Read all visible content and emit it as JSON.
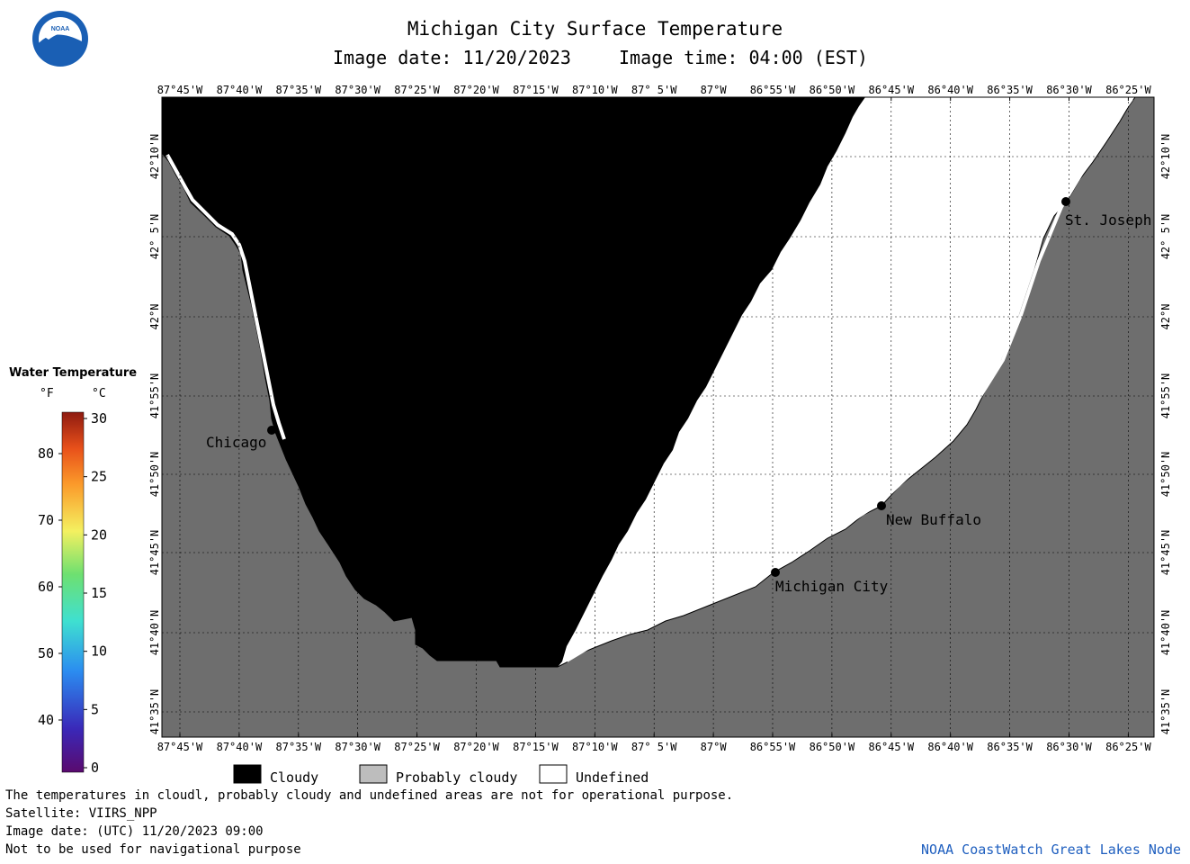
{
  "title": "Michigan City Surface Temperature",
  "image_date": "Image date: 11/20/2023",
  "image_time": "Image time: 04:00 (EST)",
  "logo_text": "NOAA",
  "colors": {
    "cloudy": "#000000",
    "probably_cloudy": "#6e6e6e",
    "undefined": "#ffffff",
    "footer_link": "#1f5fbf"
  },
  "lon_labels": [
    "87°45'W",
    "87°40'W",
    "87°35'W",
    "87°30'W",
    "87°25'W",
    "87°20'W",
    "87°15'W",
    "87°10'W",
    "87° 5'W",
    "87°W",
    "86°55'W",
    "86°50'W",
    "86°45'W",
    "86°40'W",
    "86°35'W",
    "86°30'W",
    "86°25'W"
  ],
  "lat_labels": [
    "42°10'N",
    "42° 5'N",
    "42°N",
    "41°55'N",
    "41°50'N",
    "41°45'N",
    "41°40'N",
    "41°35'N"
  ],
  "places": [
    {
      "name": "Chicago"
    },
    {
      "name": "St. Joseph"
    },
    {
      "name": "New Buffalo"
    },
    {
      "name": "Michigan City"
    }
  ],
  "temp_scale": {
    "title": "Water Temperature",
    "unit_f": "°F",
    "unit_c": "°C",
    "f_ticks": [
      "80",
      "70",
      "60",
      "50",
      "40"
    ],
    "c_ticks": [
      "30",
      "25",
      "20",
      "15",
      "10",
      "5",
      "0"
    ]
  },
  "legend": {
    "cloudy": "Cloudy",
    "probably_cloudy": "Probably cloudy",
    "undefined": "Undefined"
  },
  "footer": {
    "note": "The temperatures in cloudl, probably cloudy and undefined areas are not for operational purpose.",
    "satellite": "Satellite: VIIRS_NPP",
    "utc_date": "Image date: (UTC) 11/20/2023  09:00",
    "nav": "Not to be used for navigational purpose",
    "node": "NOAA CoastWatch Great Lakes Node"
  }
}
